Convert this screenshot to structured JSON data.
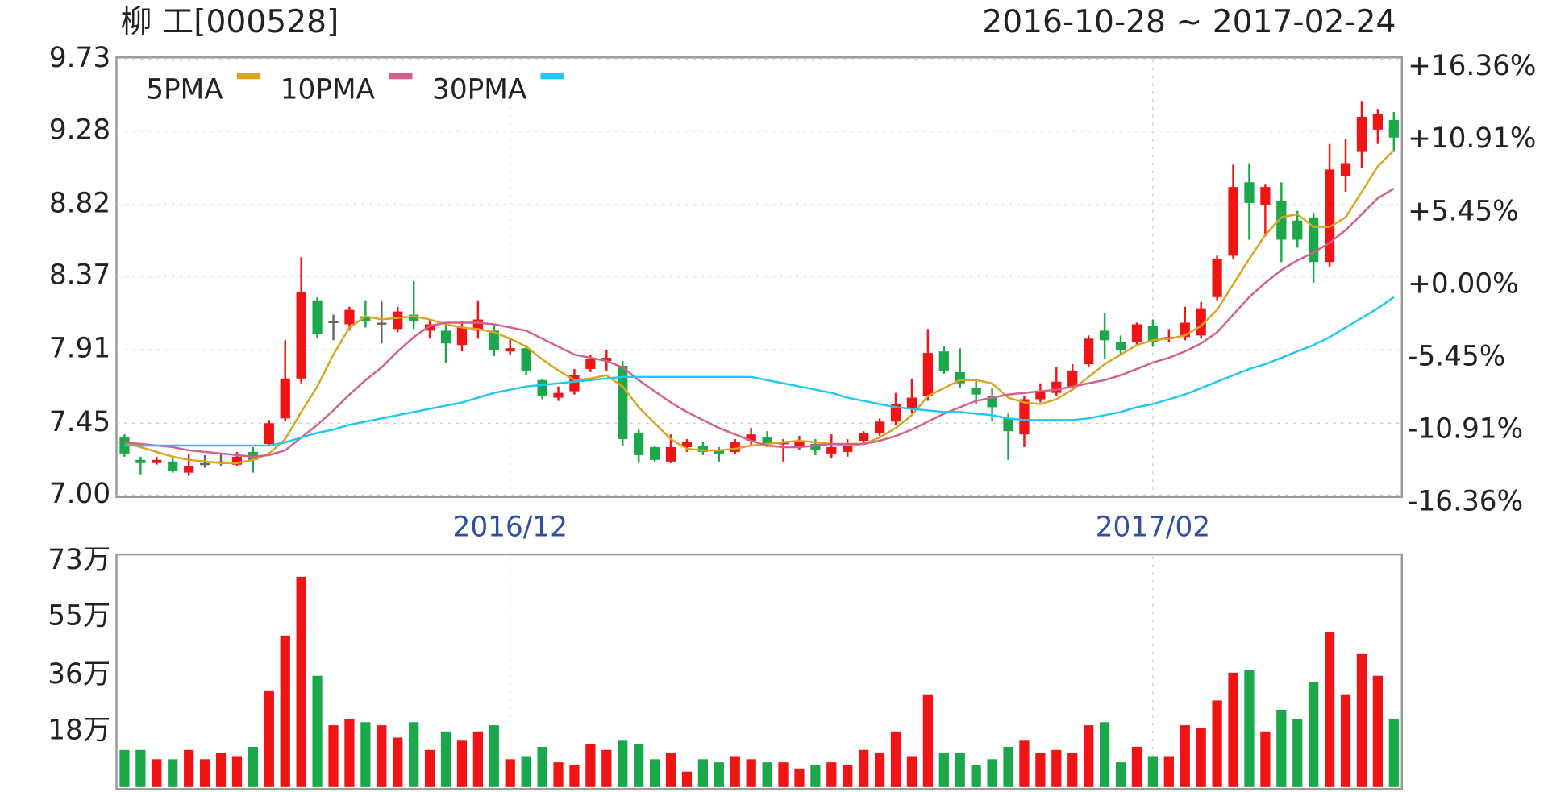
{
  "chart_data": [
    {
      "type": "candlestick",
      "title": "柳 工[000528]",
      "subtitle": "2016-10-28 ~ 2017-02-24",
      "categories": [
        null,
        null,
        null,
        null,
        null,
        null,
        null,
        null,
        null,
        null,
        null,
        null,
        null,
        null,
        null,
        null,
        null,
        null,
        null,
        null,
        null,
        null,
        null,
        null,
        "2016/12",
        null,
        null,
        null,
        null,
        null,
        null,
        null,
        null,
        null,
        null,
        null,
        null,
        null,
        null,
        null,
        null,
        null,
        null,
        null,
        null,
        null,
        null,
        null,
        null,
        null,
        null,
        null,
        null,
        null,
        null,
        null,
        null,
        null,
        null,
        null,
        null,
        null,
        null,
        null,
        "2017/02",
        null,
        null,
        null,
        null,
        null,
        null,
        null,
        null,
        null,
        null,
        null,
        null,
        null,
        null,
        null
      ],
      "open": [
        7.36,
        7.22,
        7.2,
        7.21,
        7.14,
        7.2,
        7.21,
        7.19,
        7.27,
        7.32,
        7.48,
        7.73,
        8.22,
        8.09,
        8.07,
        8.12,
        8.08,
        8.04,
        8.13,
        8.03,
        8.03,
        7.94,
        8.03,
        8.03,
        7.9,
        7.92,
        7.72,
        7.61,
        7.65,
        7.79,
        7.84,
        7.81,
        7.39,
        7.3,
        7.21,
        7.3,
        7.31,
        7.28,
        7.27,
        7.34,
        7.36,
        7.32,
        7.3,
        7.32,
        7.26,
        7.27,
        7.34,
        7.39,
        7.46,
        7.54,
        7.62,
        7.9,
        7.77,
        7.67,
        7.62,
        7.48,
        7.38,
        7.6,
        7.64,
        7.68,
        7.82,
        8.03,
        7.96,
        7.96,
        8.06,
        7.98,
        7.99,
        8.0,
        8.24,
        8.5,
        8.96,
        8.82,
        8.84,
        8.72,
        8.74,
        8.46,
        9.0,
        9.15,
        9.29,
        9.35
      ],
      "close": [
        7.26,
        7.2,
        7.22,
        7.15,
        7.18,
        7.2,
        7.21,
        7.24,
        7.22,
        7.45,
        7.73,
        8.27,
        8.01,
        8.09,
        8.16,
        8.09,
        8.08,
        8.15,
        8.09,
        8.07,
        7.95,
        8.05,
        8.1,
        7.91,
        7.92,
        7.78,
        7.62,
        7.64,
        7.75,
        7.85,
        7.86,
        7.35,
        7.25,
        7.22,
        7.3,
        7.33,
        7.27,
        7.26,
        7.33,
        7.38,
        7.32,
        7.33,
        7.34,
        7.28,
        7.3,
        7.31,
        7.39,
        7.46,
        7.57,
        7.61,
        7.89,
        7.78,
        7.7,
        7.63,
        7.55,
        7.4,
        7.6,
        7.65,
        7.71,
        7.78,
        7.98,
        7.97,
        7.91,
        8.07,
        7.96,
        7.99,
        8.08,
        8.17,
        8.48,
        8.93,
        8.83,
        8.93,
        8.6,
        8.6,
        8.46,
        9.04,
        9.08,
        9.37,
        9.39,
        9.24
      ],
      "high": [
        7.38,
        7.24,
        7.24,
        7.23,
        7.26,
        7.25,
        7.26,
        7.27,
        7.3,
        7.47,
        7.97,
        8.49,
        8.24,
        8.13,
        8.18,
        8.22,
        8.22,
        8.18,
        8.34,
        8.1,
        8.07,
        8.09,
        8.22,
        8.07,
        7.98,
        7.94,
        7.73,
        7.68,
        7.79,
        7.88,
        7.91,
        7.84,
        7.41,
        7.31,
        7.38,
        7.35,
        7.33,
        7.3,
        7.35,
        7.42,
        7.4,
        7.35,
        7.37,
        7.35,
        7.38,
        7.35,
        7.4,
        7.48,
        7.64,
        7.73,
        8.04,
        7.93,
        7.92,
        7.72,
        7.67,
        7.51,
        7.62,
        7.7,
        7.8,
        7.82,
        8.0,
        8.14,
        8.0,
        8.08,
        8.1,
        8.04,
        8.18,
        8.21,
        8.5,
        9.07,
        9.08,
        8.95,
        8.96,
        8.78,
        8.77,
        9.2,
        9.23,
        9.47,
        9.42,
        9.4
      ],
      "low": [
        7.24,
        7.13,
        7.19,
        7.14,
        7.12,
        7.17,
        7.18,
        7.18,
        7.14,
        7.31,
        7.46,
        7.7,
        7.98,
        7.97,
        8.03,
        8.05,
        7.95,
        8.02,
        8.04,
        7.98,
        7.83,
        7.9,
        7.98,
        7.87,
        7.88,
        7.75,
        7.6,
        7.59,
        7.63,
        7.77,
        7.78,
        7.31,
        7.2,
        7.21,
        7.2,
        7.27,
        7.25,
        7.21,
        7.26,
        7.31,
        7.3,
        7.21,
        7.28,
        7.25,
        7.23,
        7.24,
        7.32,
        7.37,
        7.44,
        7.51,
        7.59,
        7.76,
        7.67,
        7.57,
        7.46,
        7.22,
        7.3,
        7.58,
        7.62,
        7.66,
        7.8,
        7.85,
        7.88,
        7.94,
        7.93,
        7.96,
        7.97,
        7.98,
        8.22,
        8.48,
        8.6,
        8.62,
        8.46,
        8.55,
        8.33,
        8.43,
        8.9,
        9.05,
        9.2,
        9.15
      ],
      "up_color": "#f01414",
      "down_color": "#1aa84a",
      "flat_color": "#666666",
      "series": [
        {
          "name": "5PMA",
          "color": "#d9a520",
          "values": [
            7.33,
            7.3,
            7.27,
            7.24,
            7.22,
            7.21,
            7.2,
            7.2,
            7.22,
            7.26,
            7.35,
            7.52,
            7.68,
            7.88,
            8.05,
            8.12,
            8.1,
            8.11,
            8.12,
            8.1,
            8.07,
            8.05,
            8.04,
            8.02,
            7.98,
            7.93,
            7.85,
            7.78,
            7.72,
            7.73,
            7.75,
            7.68,
            7.55,
            7.45,
            7.35,
            7.29,
            7.28,
            7.28,
            7.29,
            7.31,
            7.32,
            7.33,
            7.34,
            7.33,
            7.32,
            7.31,
            7.32,
            7.36,
            7.42,
            7.5,
            7.62,
            7.67,
            7.72,
            7.72,
            7.7,
            7.61,
            7.58,
            7.57,
            7.6,
            7.66,
            7.74,
            7.82,
            7.88,
            7.94,
            7.97,
            7.98,
            8.0,
            8.06,
            8.16,
            8.32,
            8.48,
            8.63,
            8.74,
            8.76,
            8.68,
            8.68,
            8.74,
            8.9,
            9.06,
            9.16
          ]
        },
        {
          "name": "10PMA",
          "color": "#d45f8a",
          "values": [
            7.33,
            7.32,
            7.31,
            7.3,
            7.28,
            7.27,
            7.26,
            7.25,
            7.24,
            7.25,
            7.28,
            7.36,
            7.44,
            7.53,
            7.63,
            7.72,
            7.8,
            7.9,
            7.99,
            8.06,
            8.08,
            8.08,
            8.08,
            8.07,
            8.05,
            8.03,
            7.98,
            7.93,
            7.88,
            7.86,
            7.84,
            7.8,
            7.72,
            7.65,
            7.58,
            7.52,
            7.47,
            7.42,
            7.38,
            7.34,
            7.31,
            7.3,
            7.3,
            7.31,
            7.32,
            7.32,
            7.32,
            7.34,
            7.37,
            7.41,
            7.46,
            7.51,
            7.55,
            7.59,
            7.61,
            7.63,
            7.64,
            7.65,
            7.66,
            7.68,
            7.7,
            7.72,
            7.75,
            7.79,
            7.83,
            7.86,
            7.9,
            7.95,
            8.02,
            8.13,
            8.24,
            8.33,
            8.41,
            8.47,
            8.52,
            8.58,
            8.66,
            8.76,
            8.86,
            8.92
          ]
        },
        {
          "name": "30PMA",
          "color": "#1ec8f0",
          "values": [
            7.31,
            7.31,
            7.31,
            7.31,
            7.31,
            7.31,
            7.31,
            7.31,
            7.31,
            7.31,
            7.33,
            7.36,
            7.39,
            7.41,
            7.44,
            7.46,
            7.48,
            7.5,
            7.52,
            7.54,
            7.56,
            7.58,
            7.61,
            7.64,
            7.66,
            7.68,
            7.69,
            7.7,
            7.71,
            7.72,
            7.73,
            7.74,
            7.74,
            7.74,
            7.74,
            7.74,
            7.74,
            7.74,
            7.74,
            7.74,
            7.72,
            7.7,
            7.68,
            7.66,
            7.64,
            7.61,
            7.59,
            7.57,
            7.55,
            7.54,
            7.53,
            7.52,
            7.52,
            7.51,
            7.5,
            7.48,
            7.47,
            7.47,
            7.47,
            7.47,
            7.48,
            7.5,
            7.52,
            7.55,
            7.57,
            7.6,
            7.63,
            7.67,
            7.71,
            7.75,
            7.79,
            7.82,
            7.86,
            7.9,
            7.94,
            7.99,
            8.05,
            8.11,
            8.17,
            8.24
          ]
        }
      ],
      "ylim": [
        7,
        9.73
      ],
      "yticks": [
        {
          "value": 7,
          "label": "7.00"
        },
        7.45,
        7.91,
        8.37,
        8.82,
        9.28,
        9.73
      ],
      "y2lim": [
        -16.36,
        16.36
      ],
      "y2ticks": [
        {
          "value": -16.36,
          "label": "-16.36%"
        },
        {
          "value": -10.91,
          "label": "-10.91%"
        },
        {
          "value": -5.45,
          "label": "-5.45%"
        },
        {
          "value": 0,
          "label": "+0.00%"
        },
        {
          "value": 5.45,
          "label": "+5.45%"
        },
        {
          "value": 10.91,
          "label": "+10.91%"
        },
        {
          "value": 16.36,
          "label": "+16.36%"
        }
      ],
      "grid": true
    },
    {
      "type": "bar",
      "values": [
        12,
        12,
        9,
        9,
        12,
        9,
        11,
        10,
        13,
        31,
        49,
        68,
        36,
        20,
        22,
        21,
        20,
        16,
        21,
        12,
        18,
        15,
        18,
        20,
        9,
        10,
        13,
        8,
        7,
        14,
        12,
        15,
        14,
        9,
        11,
        5,
        9,
        8,
        10,
        9,
        8,
        8,
        6,
        7,
        8,
        7,
        12,
        11,
        18,
        10,
        30,
        11,
        11,
        7,
        9,
        13,
        15,
        11,
        12,
        11,
        20,
        21,
        8,
        13,
        10,
        10,
        20,
        19,
        28,
        37,
        38,
        18,
        25,
        22,
        34,
        50,
        30,
        43,
        36,
        22
      ],
      "ylim": [
        0,
        73
      ],
      "yticks": [
        {
          "value": 18,
          "label": "18万"
        },
        {
          "value": 36,
          "label": "36万"
        },
        {
          "value": 55,
          "label": "55万"
        },
        {
          "value": 73,
          "label": "73万"
        }
      ]
    }
  ]
}
